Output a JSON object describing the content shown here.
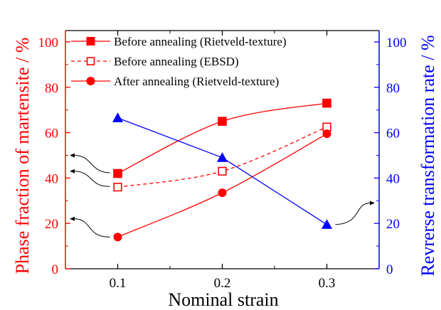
{
  "chart_data": {
    "type": "line",
    "xlabel": "Nominal strain",
    "ylabel_left": "Phase fraction of martensite / %",
    "ylabel_right": "Revrerse transformation rate / %",
    "xlim": [
      0.05,
      0.35
    ],
    "ylim_left": [
      0,
      105
    ],
    "ylim_right": [
      0,
      105
    ],
    "x_ticks": [
      "0.1",
      "0.2",
      "0.3"
    ],
    "x_tick_values": [
      0.1,
      0.2,
      0.3
    ],
    "y_ticks_left": [
      "0",
      "20",
      "40",
      "60",
      "80",
      "100"
    ],
    "y_ticks_right": [
      "0",
      "20",
      "40",
      "60",
      "80",
      "100"
    ],
    "y_tick_values": [
      0,
      20,
      40,
      60,
      80,
      100
    ],
    "grid": false,
    "legend_position": "top-left",
    "x": [
      0.1,
      0.2,
      0.3
    ],
    "series": [
      {
        "name": "Before annealing (Rietveld-texture)",
        "axis": "left",
        "values": [
          42,
          65,
          73
        ],
        "marker": "filled-square",
        "line": "solid",
        "color": "#ff0000"
      },
      {
        "name": "Before annealing (EBSD)",
        "axis": "left",
        "values": [
          36,
          43,
          62.5
        ],
        "marker": "open-square",
        "line": "dashed",
        "color": "#ff0000"
      },
      {
        "name": "After annealing (Rietveld-texture)",
        "axis": "left",
        "values": [
          14,
          33.5,
          59.5
        ],
        "marker": "filled-circle",
        "line": "solid",
        "color": "#ff0000"
      },
      {
        "axis": "right",
        "values": [
          66.5,
          49,
          19.5
        ],
        "marker": "filled-triangle",
        "line": "solid",
        "color": "#0000ff"
      }
    ],
    "colors": {
      "left_axis": "#ff0000",
      "right_axis": "#0000ff",
      "frame": "#000000"
    }
  }
}
